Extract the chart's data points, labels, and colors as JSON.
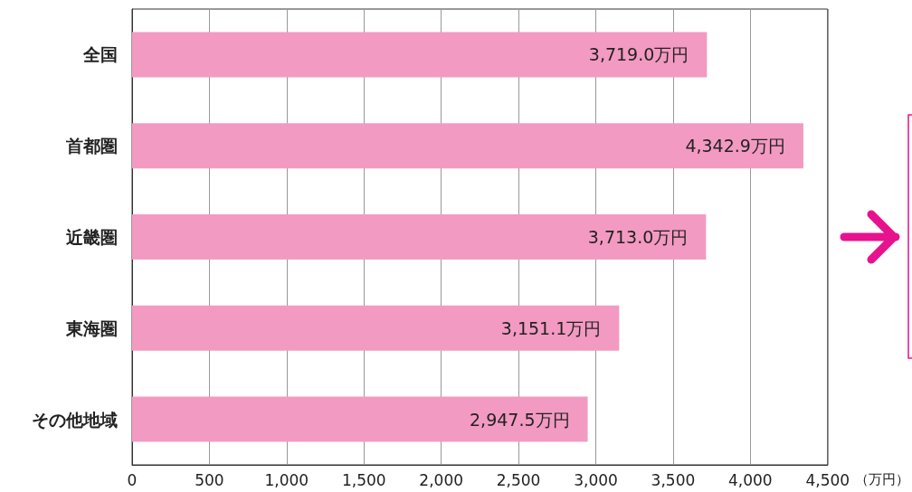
{
  "chart_data": {
    "type": "bar",
    "orientation": "horizontal",
    "xlabel": "（万円）",
    "categories": [
      "全国",
      "首都圏",
      "近畿圏",
      "東海圏",
      "その他地域"
    ],
    "values": [
      3719.0,
      4342.9,
      3713.0,
      3151.1,
      2947.5
    ],
    "value_labels": [
      "3,719.0万円",
      "4,342.9万円",
      "3,713.0万円",
      "3,151.1万円",
      "2,947.5万円"
    ],
    "color": "#f39ac2",
    "xlim": [
      0,
      4500
    ],
    "xticks": [
      0,
      500,
      {
        "value": 1000,
        "label": "1,000"
      },
      {
        "value": 1500,
        "label": "1,500"
      },
      {
        "value": 2000,
        "label": "2,000"
      },
      {
        "value": 2500,
        "label": "2,500"
      },
      {
        "value": 3000,
        "label": "3,000"
      },
      {
        "value": 3500,
        "label": "3,500"
      },
      {
        "value": 4000,
        "label": "4,000"
      },
      {
        "value": 4500,
        "label": "4,500"
      }
    ],
    "grid": "x"
  }
}
